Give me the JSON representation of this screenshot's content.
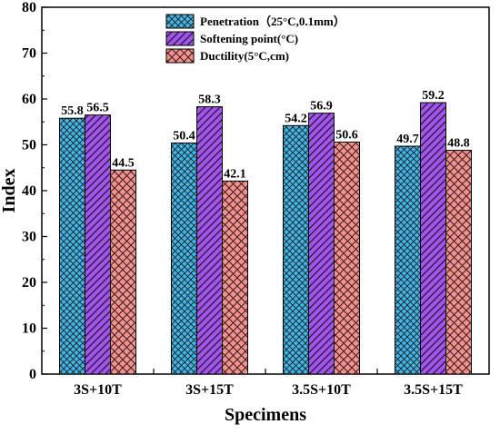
{
  "chart_data": {
    "type": "bar",
    "xlabel": "Specimens",
    "ylabel": "Index",
    "ylim": [
      0,
      80
    ],
    "yticks": [
      0,
      10,
      20,
      30,
      40,
      50,
      60,
      70,
      80
    ],
    "grid": false,
    "legend_position": "top-center",
    "categories": [
      "3S+10T",
      "3S+15T",
      "3.5S+10T",
      "3.5S+15T"
    ],
    "series": [
      {
        "name": "Penetration（25°C,0.1mm）",
        "values": [
          55.8,
          50.4,
          54.2,
          49.7
        ],
        "labels": [
          "55.8",
          "50.4",
          "54.2",
          "49.7"
        ],
        "color": "#3fb6e8",
        "pattern": "crosshatch"
      },
      {
        "name": "Softening point(°C)",
        "values": [
          56.5,
          58.3,
          56.9,
          59.2
        ],
        "labels": [
          "56.5",
          "58.3",
          "56.9",
          "59.2"
        ],
        "color": "#a352f0",
        "pattern": "diagonal"
      },
      {
        "name": "Ductility(5°C,cm)",
        "values": [
          44.5,
          42.1,
          50.6,
          48.8
        ],
        "labels": [
          "44.5",
          "42.1",
          "50.6",
          "48.8"
        ],
        "color": "#f0928e",
        "pattern": "diamond"
      }
    ]
  }
}
